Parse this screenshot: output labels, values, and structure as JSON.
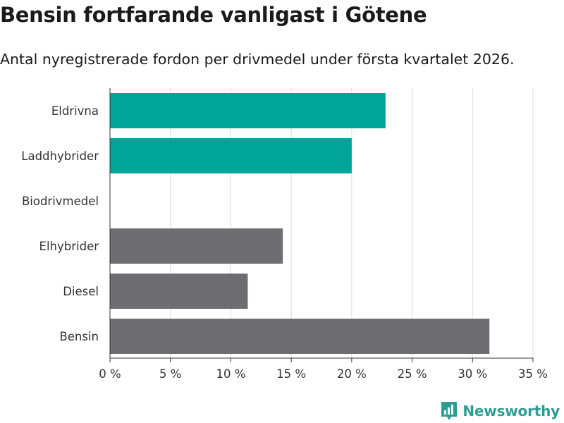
{
  "title": "Bensin fortfarande vanligast i Götene",
  "subtitle": "Antal nyregistrerade fordon per drivmedel under första kvartalet 2026.",
  "brand": {
    "name": "Newsworthy",
    "icon": "newsworthy-logo-icon",
    "color": "#2e9e92"
  },
  "colors": {
    "highlight": "#00a499",
    "default": "#6e6d72",
    "grid": "#dddddd",
    "axis": "#333333"
  },
  "chart_data": {
    "type": "bar",
    "orientation": "horizontal",
    "categories": [
      "Eldrivna",
      "Laddhybrider",
      "Biodrivmedel",
      "Elhybrider",
      "Diesel",
      "Bensin"
    ],
    "values": [
      22.8,
      20.0,
      0,
      14.3,
      11.4,
      31.4
    ],
    "highlight": [
      true,
      true,
      true,
      false,
      false,
      false
    ],
    "xlim": [
      0,
      35
    ],
    "xticks": [
      0,
      5,
      10,
      15,
      20,
      25,
      30,
      35
    ],
    "xtick_labels": [
      "0 %",
      "5 %",
      "10 %",
      "15 %",
      "20 %",
      "25 %",
      "30 %",
      "35 %"
    ],
    "xlabel": "",
    "ylabel": "",
    "grid": true,
    "unit": "%"
  }
}
